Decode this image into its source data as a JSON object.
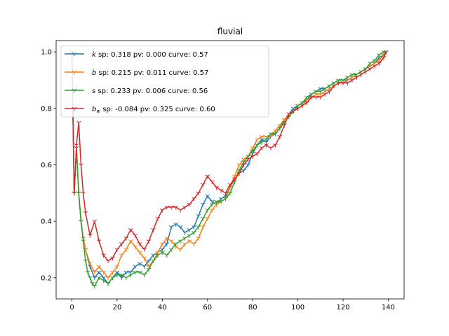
{
  "chart_data": {
    "type": "line",
    "title": "fluvial",
    "xlabel": "",
    "ylabel": "",
    "xlim": [
      -7,
      147
    ],
    "ylim": [
      0.125,
      1.04
    ],
    "xticks": [
      0,
      20,
      40,
      60,
      80,
      100,
      120,
      140
    ],
    "yticks": [
      0.2,
      0.4,
      0.6,
      0.8,
      1.0
    ],
    "xtick_labels": [
      "0",
      "20",
      "40",
      "60",
      "80",
      "100",
      "120",
      "140"
    ],
    "ytick_labels": [
      "0.2",
      "0.4",
      "0.6",
      "0.8",
      "1.0"
    ],
    "grid": false,
    "legend_position": "top-left",
    "series": [
      {
        "name": "k",
        "legend_symbol": "k",
        "legend_subscript": "",
        "legend_rest": " sp: 0.318 pv: 0.000 curve: 0.57",
        "color": "#1f77b4",
        "marker": "tri_down",
        "points": [
          [
            0,
            1.0
          ],
          [
            1,
            0.5
          ],
          [
            2,
            0.66
          ],
          [
            3,
            0.5
          ],
          [
            4,
            0.4
          ],
          [
            5,
            0.34
          ],
          [
            6,
            0.3
          ],
          [
            8,
            0.24
          ],
          [
            10,
            0.2
          ],
          [
            12,
            0.22
          ],
          [
            14,
            0.2
          ],
          [
            16,
            0.18
          ],
          [
            18,
            0.2
          ],
          [
            20,
            0.22
          ],
          [
            22,
            0.2
          ],
          [
            24,
            0.22
          ],
          [
            26,
            0.22
          ],
          [
            28,
            0.24
          ],
          [
            30,
            0.25
          ],
          [
            32,
            0.24
          ],
          [
            34,
            0.26
          ],
          [
            36,
            0.28
          ],
          [
            38,
            0.29
          ],
          [
            40,
            0.3
          ],
          [
            42,
            0.32
          ],
          [
            44,
            0.38
          ],
          [
            46,
            0.39
          ],
          [
            48,
            0.38
          ],
          [
            50,
            0.36
          ],
          [
            52,
            0.37
          ],
          [
            54,
            0.38
          ],
          [
            56,
            0.42
          ],
          [
            58,
            0.46
          ],
          [
            60,
            0.49
          ],
          [
            62,
            0.47
          ],
          [
            64,
            0.46
          ],
          [
            66,
            0.48
          ],
          [
            68,
            0.49
          ],
          [
            70,
            0.52
          ],
          [
            72,
            0.55
          ],
          [
            74,
            0.57
          ],
          [
            76,
            0.58
          ],
          [
            78,
            0.6
          ],
          [
            80,
            0.64
          ],
          [
            82,
            0.67
          ],
          [
            84,
            0.69
          ],
          [
            86,
            0.68
          ],
          [
            88,
            0.7
          ],
          [
            90,
            0.71
          ],
          [
            92,
            0.73
          ],
          [
            94,
            0.76
          ],
          [
            96,
            0.78
          ],
          [
            98,
            0.8
          ],
          [
            100,
            0.81
          ],
          [
            102,
            0.82
          ],
          [
            104,
            0.83
          ],
          [
            106,
            0.85
          ],
          [
            108,
            0.86
          ],
          [
            110,
            0.87
          ],
          [
            112,
            0.87
          ],
          [
            114,
            0.88
          ],
          [
            116,
            0.89
          ],
          [
            118,
            0.9
          ],
          [
            120,
            0.9
          ],
          [
            122,
            0.9
          ],
          [
            124,
            0.91
          ],
          [
            126,
            0.92
          ],
          [
            128,
            0.93
          ],
          [
            130,
            0.94
          ],
          [
            132,
            0.95
          ],
          [
            134,
            0.96
          ],
          [
            136,
            0.98
          ],
          [
            138,
            0.99
          ],
          [
            139,
            1.0
          ]
        ]
      },
      {
        "name": "b",
        "legend_symbol": "b",
        "legend_subscript": "",
        "legend_rest": " sp: 0.215 pv: 0.011 curve: 0.57",
        "color": "#ff7f0e",
        "marker": "tri_down",
        "points": [
          [
            0,
            1.0
          ],
          [
            1,
            0.5
          ],
          [
            2,
            0.66
          ],
          [
            3,
            0.5
          ],
          [
            4,
            0.4
          ],
          [
            5,
            0.34
          ],
          [
            6,
            0.3
          ],
          [
            8,
            0.25
          ],
          [
            10,
            0.22
          ],
          [
            12,
            0.24
          ],
          [
            14,
            0.22
          ],
          [
            16,
            0.2
          ],
          [
            18,
            0.22
          ],
          [
            20,
            0.24
          ],
          [
            22,
            0.28
          ],
          [
            24,
            0.3
          ],
          [
            26,
            0.33
          ],
          [
            28,
            0.31
          ],
          [
            30,
            0.29
          ],
          [
            32,
            0.27
          ],
          [
            34,
            0.24
          ],
          [
            36,
            0.26
          ],
          [
            38,
            0.29
          ],
          [
            40,
            0.32
          ],
          [
            42,
            0.34
          ],
          [
            44,
            0.33
          ],
          [
            46,
            0.31
          ],
          [
            48,
            0.3
          ],
          [
            50,
            0.32
          ],
          [
            52,
            0.33
          ],
          [
            54,
            0.32
          ],
          [
            56,
            0.34
          ],
          [
            58,
            0.38
          ],
          [
            60,
            0.41
          ],
          [
            62,
            0.44
          ],
          [
            64,
            0.46
          ],
          [
            66,
            0.47
          ],
          [
            68,
            0.48
          ],
          [
            70,
            0.52
          ],
          [
            72,
            0.56
          ],
          [
            74,
            0.6
          ],
          [
            76,
            0.62
          ],
          [
            78,
            0.63
          ],
          [
            80,
            0.66
          ],
          [
            82,
            0.69
          ],
          [
            84,
            0.7
          ],
          [
            86,
            0.7
          ],
          [
            88,
            0.7
          ],
          [
            90,
            0.72
          ],
          [
            92,
            0.74
          ],
          [
            94,
            0.76
          ],
          [
            96,
            0.78
          ],
          [
            98,
            0.79
          ],
          [
            100,
            0.8
          ],
          [
            102,
            0.81
          ],
          [
            104,
            0.83
          ],
          [
            106,
            0.84
          ],
          [
            108,
            0.85
          ],
          [
            110,
            0.85
          ],
          [
            112,
            0.86
          ],
          [
            114,
            0.87
          ],
          [
            116,
            0.88
          ],
          [
            118,
            0.89
          ],
          [
            120,
            0.89
          ],
          [
            122,
            0.9
          ],
          [
            124,
            0.91
          ],
          [
            126,
            0.92
          ],
          [
            128,
            0.93
          ],
          [
            130,
            0.94
          ],
          [
            132,
            0.95
          ],
          [
            134,
            0.96
          ],
          [
            136,
            0.97
          ],
          [
            138,
            0.99
          ],
          [
            139,
            1.0
          ]
        ]
      },
      {
        "name": "s",
        "legend_symbol": "s",
        "legend_subscript": "",
        "legend_rest": " sp: 0.233 pv: 0.006 curve: 0.56",
        "color": "#2ca02c",
        "marker": "tri_down",
        "points": [
          [
            0,
            1.0
          ],
          [
            1,
            0.5
          ],
          [
            2,
            0.66
          ],
          [
            3,
            0.5
          ],
          [
            4,
            0.4
          ],
          [
            5,
            0.33
          ],
          [
            6,
            0.26
          ],
          [
            7,
            0.22
          ],
          [
            8,
            0.2
          ],
          [
            9,
            0.18
          ],
          [
            10,
            0.17
          ],
          [
            12,
            0.2
          ],
          [
            14,
            0.19
          ],
          [
            16,
            0.18
          ],
          [
            18,
            0.2
          ],
          [
            20,
            0.21
          ],
          [
            22,
            0.21
          ],
          [
            24,
            0.2
          ],
          [
            26,
            0.21
          ],
          [
            28,
            0.22
          ],
          [
            30,
            0.22
          ],
          [
            32,
            0.21
          ],
          [
            34,
            0.23
          ],
          [
            36,
            0.26
          ],
          [
            38,
            0.28
          ],
          [
            40,
            0.29
          ],
          [
            42,
            0.28
          ],
          [
            44,
            0.3
          ],
          [
            46,
            0.32
          ],
          [
            48,
            0.33
          ],
          [
            50,
            0.34
          ],
          [
            52,
            0.35
          ],
          [
            54,
            0.36
          ],
          [
            56,
            0.38
          ],
          [
            58,
            0.41
          ],
          [
            60,
            0.44
          ],
          [
            62,
            0.46
          ],
          [
            64,
            0.47
          ],
          [
            66,
            0.47
          ],
          [
            68,
            0.48
          ],
          [
            70,
            0.5
          ],
          [
            72,
            0.54
          ],
          [
            74,
            0.58
          ],
          [
            76,
            0.61
          ],
          [
            78,
            0.63
          ],
          [
            80,
            0.65
          ],
          [
            82,
            0.67
          ],
          [
            84,
            0.68
          ],
          [
            86,
            0.69
          ],
          [
            88,
            0.71
          ],
          [
            90,
            0.71
          ],
          [
            92,
            0.73
          ],
          [
            94,
            0.75
          ],
          [
            96,
            0.77
          ],
          [
            98,
            0.79
          ],
          [
            100,
            0.81
          ],
          [
            102,
            0.82
          ],
          [
            104,
            0.84
          ],
          [
            106,
            0.85
          ],
          [
            108,
            0.86
          ],
          [
            110,
            0.86
          ],
          [
            112,
            0.87
          ],
          [
            114,
            0.88
          ],
          [
            116,
            0.89
          ],
          [
            118,
            0.9
          ],
          [
            120,
            0.9
          ],
          [
            122,
            0.91
          ],
          [
            124,
            0.92
          ],
          [
            126,
            0.92
          ],
          [
            128,
            0.93
          ],
          [
            130,
            0.94
          ],
          [
            132,
            0.96
          ],
          [
            134,
            0.97
          ],
          [
            136,
            0.99
          ],
          [
            138,
            1.0
          ],
          [
            139,
            1.0
          ]
        ]
      },
      {
        "name": "b_w",
        "legend_symbol": "b",
        "legend_subscript": "w",
        "legend_rest": " sp: -0.084 pv: 0.325 curve: 0.60",
        "color": "#d62728",
        "marker": "tri_down",
        "points": [
          [
            0,
            1.0
          ],
          [
            1,
            0.5
          ],
          [
            2,
            0.67
          ],
          [
            3,
            0.75
          ],
          [
            4,
            0.6
          ],
          [
            5,
            0.5
          ],
          [
            6,
            0.43
          ],
          [
            8,
            0.35
          ],
          [
            10,
            0.4
          ],
          [
            12,
            0.33
          ],
          [
            14,
            0.28
          ],
          [
            16,
            0.26
          ],
          [
            18,
            0.27
          ],
          [
            20,
            0.3
          ],
          [
            22,
            0.32
          ],
          [
            24,
            0.34
          ],
          [
            26,
            0.37
          ],
          [
            28,
            0.35
          ],
          [
            30,
            0.32
          ],
          [
            32,
            0.3
          ],
          [
            34,
            0.33
          ],
          [
            36,
            0.37
          ],
          [
            38,
            0.41
          ],
          [
            40,
            0.44
          ],
          [
            42,
            0.45
          ],
          [
            44,
            0.45
          ],
          [
            46,
            0.45
          ],
          [
            48,
            0.44
          ],
          [
            50,
            0.45
          ],
          [
            52,
            0.46
          ],
          [
            54,
            0.48
          ],
          [
            56,
            0.5
          ],
          [
            58,
            0.53
          ],
          [
            60,
            0.56
          ],
          [
            62,
            0.54
          ],
          [
            64,
            0.52
          ],
          [
            66,
            0.51
          ],
          [
            68,
            0.5
          ],
          [
            70,
            0.53
          ],
          [
            72,
            0.55
          ],
          [
            74,
            0.57
          ],
          [
            76,
            0.6
          ],
          [
            78,
            0.62
          ],
          [
            80,
            0.63
          ],
          [
            82,
            0.64
          ],
          [
            84,
            0.66
          ],
          [
            86,
            0.67
          ],
          [
            88,
            0.66
          ],
          [
            90,
            0.67
          ],
          [
            92,
            0.7
          ],
          [
            94,
            0.74
          ],
          [
            96,
            0.78
          ],
          [
            98,
            0.79
          ],
          [
            100,
            0.8
          ],
          [
            102,
            0.81
          ],
          [
            104,
            0.82
          ],
          [
            106,
            0.84
          ],
          [
            108,
            0.84
          ],
          [
            110,
            0.84
          ],
          [
            112,
            0.85
          ],
          [
            114,
            0.86
          ],
          [
            116,
            0.88
          ],
          [
            118,
            0.89
          ],
          [
            120,
            0.89
          ],
          [
            122,
            0.89
          ],
          [
            124,
            0.9
          ],
          [
            126,
            0.91
          ],
          [
            128,
            0.92
          ],
          [
            130,
            0.93
          ],
          [
            132,
            0.94
          ],
          [
            134,
            0.95
          ],
          [
            136,
            0.96
          ],
          [
            138,
            0.98
          ],
          [
            139,
            1.0
          ]
        ]
      }
    ]
  }
}
